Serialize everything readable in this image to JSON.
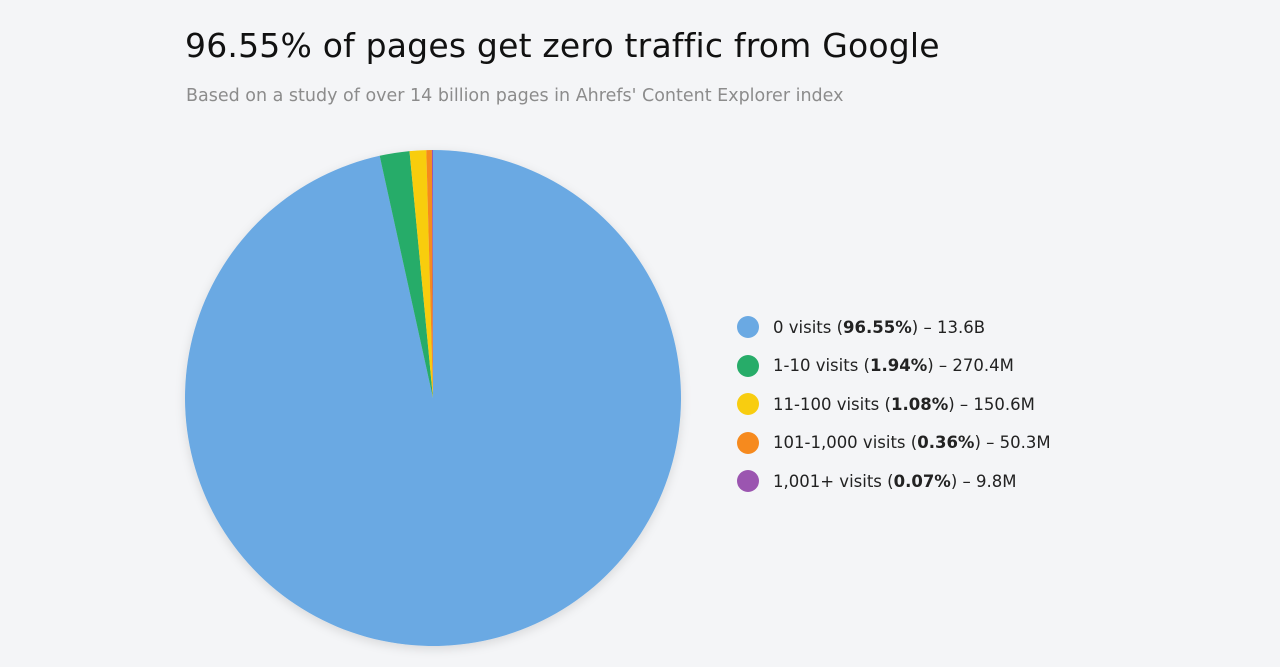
{
  "chart_data": {
    "type": "pie",
    "title": "96.55% of pages get zero traffic from Google",
    "subtitle": "Based on a study of over 14 billion pages in Ahrefs' Content Explorer index",
    "categories": [
      "0 visits",
      "1-10 visits",
      "11-100 visits",
      "101-1,000 visits",
      "1,001+ visits"
    ],
    "values": [
      96.55,
      1.94,
      1.08,
      0.36,
      0.07
    ],
    "value_labels": [
      "96.55%",
      "1.94%",
      "1.08%",
      "0.36%",
      "0.07%"
    ],
    "counts": [
      {
        "value": 13600000000,
        "label": "13.6B"
      },
      {
        "value": 270400000,
        "label": "270.4M"
      },
      {
        "value": 150600000,
        "label": "150.6M"
      },
      {
        "value": 50300000,
        "label": "50.3M"
      },
      {
        "value": 9800000,
        "label": "9.8M"
      }
    ],
    "colors": [
      "#6aa9e3",
      "#27ac69",
      "#f8cd10",
      "#f68a1e",
      "#9b55b0"
    ],
    "legend": "right"
  }
}
